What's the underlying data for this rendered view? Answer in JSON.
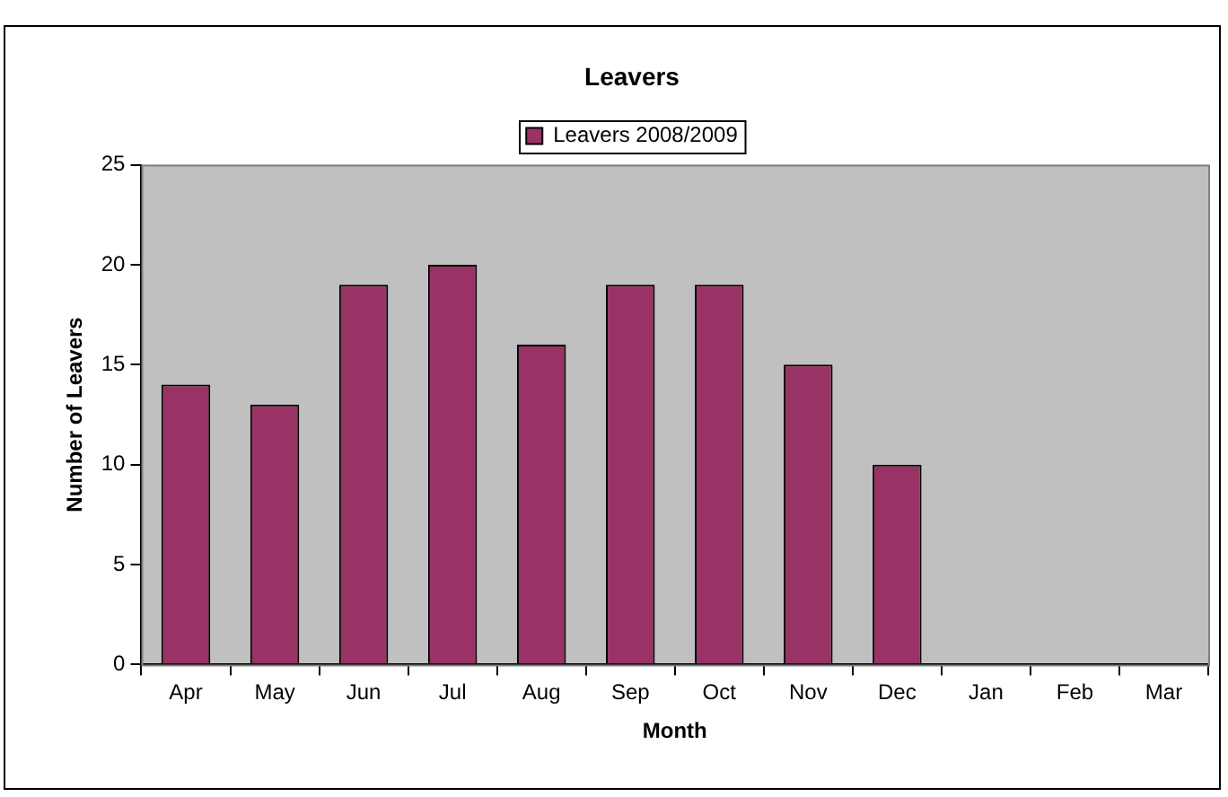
{
  "chart_data": {
    "type": "bar",
    "title": "Leavers",
    "xlabel": "Month",
    "ylabel": "Number of Leavers",
    "categories": [
      "Apr",
      "May",
      "Jun",
      "Jul",
      "Aug",
      "Sep",
      "Oct",
      "Nov",
      "Dec",
      "Jan",
      "Feb",
      "Mar"
    ],
    "series": [
      {
        "name": "Leavers 2008/2009",
        "color": "#993366",
        "values": [
          14,
          13,
          19,
          20,
          16,
          19,
          19,
          15,
          10,
          null,
          null,
          null
        ]
      }
    ],
    "ylim": [
      0,
      25
    ],
    "yticks": [
      0,
      5,
      10,
      15,
      20,
      25
    ],
    "grid": false,
    "legend": "top"
  }
}
